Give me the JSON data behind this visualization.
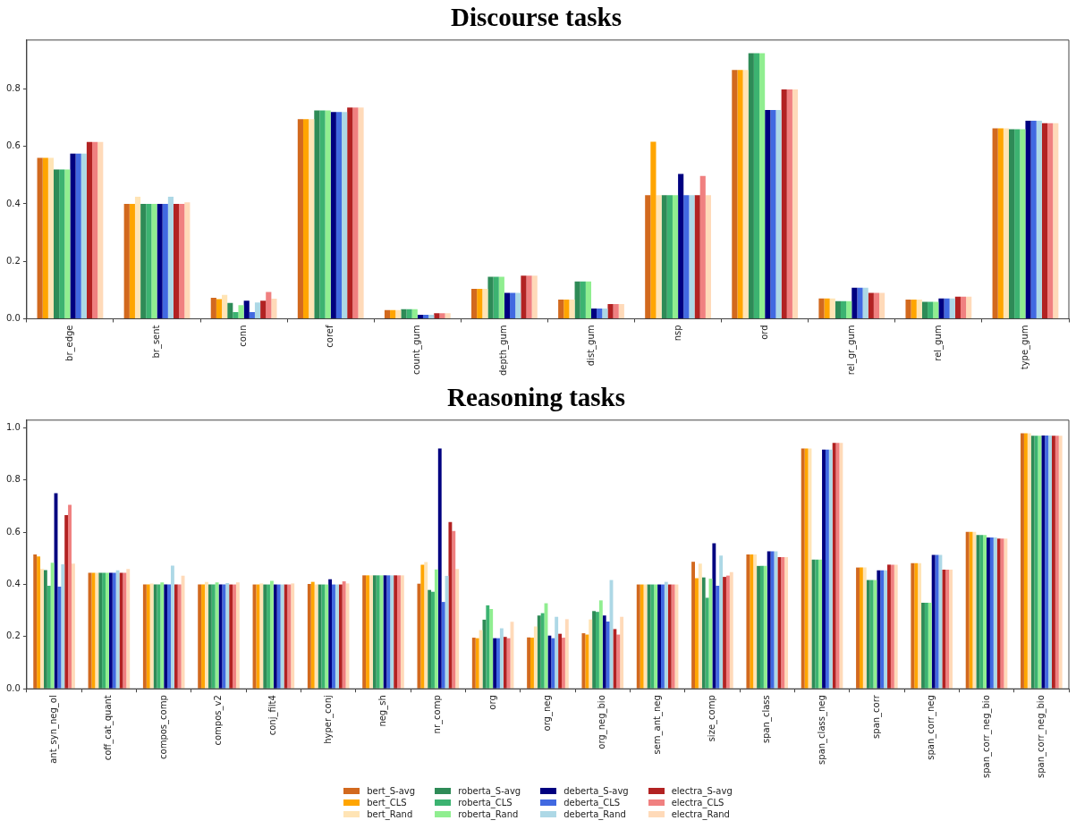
{
  "chart_data": [
    {
      "type": "bar",
      "title": "Discourse tasks",
      "categories": [
        "br_edge",
        "br_sent",
        "conn",
        "coref",
        "count_gum",
        "depth_gum",
        "dist_gum",
        "nsp",
        "ord",
        "rel_gr_gum",
        "rel_gum",
        "type_gum"
      ],
      "series": [
        {
          "color": "#d2691e",
          "values": [
            0.56,
            0.4,
            0.073,
            0.695,
            0.03,
            0.104,
            0.067,
            0.43,
            0.866,
            0.071,
            0.067,
            0.663
          ]
        },
        {
          "color": "#ffa500",
          "values": [
            0.56,
            0.4,
            0.068,
            0.695,
            0.03,
            0.104,
            0.067,
            0.616,
            0.866,
            0.071,
            0.067,
            0.663
          ]
        },
        {
          "color": "#ffe4b5",
          "values": [
            0.56,
            0.425,
            0.083,
            0.695,
            0.03,
            0.104,
            0.067,
            0.43,
            0.866,
            0.071,
            0.067,
            0.663
          ]
        },
        {
          "color": "#2e8b57",
          "values": [
            0.52,
            0.4,
            0.055,
            0.725,
            0.033,
            0.146,
            0.13,
            0.43,
            0.924,
            0.061,
            0.059,
            0.66
          ]
        },
        {
          "color": "#3cb371",
          "values": [
            0.52,
            0.4,
            0.023,
            0.725,
            0.033,
            0.146,
            0.13,
            0.43,
            0.924,
            0.061,
            0.059,
            0.66
          ]
        },
        {
          "color": "#90ee90",
          "values": [
            0.52,
            0.4,
            0.047,
            0.725,
            0.033,
            0.146,
            0.13,
            0.43,
            0.924,
            0.061,
            0.059,
            0.66
          ]
        },
        {
          "color": "#000080",
          "values": [
            0.575,
            0.4,
            0.063,
            0.72,
            0.014,
            0.09,
            0.036,
            0.504,
            0.727,
            0.108,
            0.071,
            0.689
          ]
        },
        {
          "color": "#4169e1",
          "values": [
            0.575,
            0.4,
            0.023,
            0.72,
            0.014,
            0.09,
            0.036,
            0.43,
            0.727,
            0.108,
            0.071,
            0.689
          ]
        },
        {
          "color": "#add8e6",
          "values": [
            0.575,
            0.425,
            0.057,
            0.72,
            0.014,
            0.09,
            0.036,
            0.43,
            0.727,
            0.108,
            0.071,
            0.689
          ]
        },
        {
          "color": "#b22222",
          "values": [
            0.615,
            0.4,
            0.063,
            0.735,
            0.019,
            0.15,
            0.051,
            0.43,
            0.798,
            0.09,
            0.077,
            0.681
          ]
        },
        {
          "color": "#f08080",
          "values": [
            0.615,
            0.4,
            0.093,
            0.735,
            0.019,
            0.15,
            0.051,
            0.497,
            0.798,
            0.09,
            0.077,
            0.681
          ]
        },
        {
          "color": "#ffdab9",
          "values": [
            0.615,
            0.405,
            0.07,
            0.735,
            0.019,
            0.15,
            0.051,
            0.43,
            0.798,
            0.09,
            0.077,
            0.681
          ]
        }
      ],
      "ylim": [
        0,
        0.97
      ],
      "yticks": [
        {
          "value": 0,
          "label": "0.0"
        },
        {
          "value": 0.2,
          "label": "0.2"
        },
        {
          "value": 0.4,
          "label": "0.4"
        },
        {
          "value": 0.6,
          "label": "0.6"
        },
        {
          "value": 0.8,
          "label": "0.8"
        }
      ]
    },
    {
      "type": "bar",
      "title": "Reasoning tasks",
      "categories": [
        "ant_syn_neg_ol",
        "coff_cat_quant",
        "compos_comp",
        "compos_v2",
        "conj_filt4",
        "hyper_conj",
        "neg_sh",
        "nr_comp",
        "org",
        "org_neg",
        "org_neg_bio",
        "sem_ant_neg",
        "size_comp",
        "span_class",
        "span_class_neg",
        "span_corr",
        "span_corr_neg",
        "span_corr_neg_bio",
        "span_corr_neg_bio"
      ],
      "series": [
        {
          "name": "bert_S-avg",
          "color": "#d2691e",
          "values": [
            0.515,
            0.445,
            0.4,
            0.4,
            0.4,
            0.402,
            0.435,
            0.403,
            0.196,
            0.197,
            0.213,
            0.4,
            0.487,
            0.515,
            0.921,
            0.465,
            0.482,
            0.602,
            0.98
          ]
        },
        {
          "name": "bert_CLS",
          "color": "#ffa500",
          "values": [
            0.507,
            0.445,
            0.4,
            0.4,
            0.4,
            0.41,
            0.435,
            0.476,
            0.194,
            0.196,
            0.208,
            0.4,
            0.424,
            0.515,
            0.921,
            0.465,
            0.482,
            0.602,
            0.98
          ]
        },
        {
          "name": "bert_Rand",
          "color": "#ffe4b5",
          "values": [
            0.459,
            0.445,
            0.404,
            0.41,
            0.404,
            0.4,
            0.435,
            0.486,
            0.225,
            0.239,
            0.266,
            0.4,
            0.48,
            0.515,
            0.921,
            0.465,
            0.482,
            0.602,
            0.98
          ]
        },
        {
          "name": "roberta_S-avg",
          "color": "#2e8b57",
          "values": [
            0.455,
            0.445,
            0.4,
            0.4,
            0.4,
            0.4,
            0.435,
            0.379,
            0.265,
            0.281,
            0.298,
            0.4,
            0.427,
            0.471,
            0.495,
            0.417,
            0.33,
            0.59,
            0.97
          ]
        },
        {
          "name": "roberta_CLS",
          "color": "#3cb371",
          "values": [
            0.395,
            0.445,
            0.4,
            0.4,
            0.4,
            0.4,
            0.435,
            0.372,
            0.32,
            0.29,
            0.295,
            0.4,
            0.349,
            0.471,
            0.495,
            0.417,
            0.33,
            0.59,
            0.97
          ]
        },
        {
          "name": "roberta_Rand",
          "color": "#90ee90",
          "values": [
            0.483,
            0.445,
            0.408,
            0.408,
            0.414,
            0.4,
            0.435,
            0.458,
            0.306,
            0.328,
            0.339,
            0.4,
            0.422,
            0.471,
            0.495,
            0.417,
            0.33,
            0.59,
            0.97
          ]
        },
        {
          "name": "deberta_S-avg",
          "color": "#000080",
          "values": [
            0.75,
            0.445,
            0.4,
            0.4,
            0.4,
            0.42,
            0.435,
            0.921,
            0.194,
            0.204,
            0.281,
            0.4,
            0.558,
            0.527,
            0.917,
            0.454,
            0.513,
            0.58,
            0.971
          ]
        },
        {
          "name": "deberta_CLS",
          "color": "#4169e1",
          "values": [
            0.392,
            0.445,
            0.4,
            0.4,
            0.4,
            0.4,
            0.435,
            0.333,
            0.194,
            0.194,
            0.258,
            0.4,
            0.395,
            0.527,
            0.917,
            0.454,
            0.513,
            0.58,
            0.971
          ]
        },
        {
          "name": "deberta_Rand",
          "color": "#add8e6",
          "values": [
            0.477,
            0.454,
            0.472,
            0.405,
            0.4,
            0.4,
            0.435,
            0.433,
            0.232,
            0.276,
            0.417,
            0.41,
            0.511,
            0.527,
            0.917,
            0.454,
            0.513,
            0.58,
            0.971
          ]
        },
        {
          "name": "electra_S-avg",
          "color": "#b22222",
          "values": [
            0.666,
            0.445,
            0.4,
            0.4,
            0.4,
            0.4,
            0.435,
            0.639,
            0.199,
            0.211,
            0.229,
            0.4,
            0.429,
            0.505,
            0.943,
            0.476,
            0.457,
            0.576,
            0.97
          ]
        },
        {
          "name": "electra_CLS",
          "color": "#f08080",
          "values": [
            0.705,
            0.445,
            0.4,
            0.4,
            0.4,
            0.412,
            0.435,
            0.605,
            0.194,
            0.196,
            0.208,
            0.4,
            0.434,
            0.505,
            0.943,
            0.476,
            0.457,
            0.576,
            0.97
          ]
        },
        {
          "name": "electra_Rand",
          "color": "#ffdab9",
          "values": [
            0.48,
            0.459,
            0.434,
            0.408,
            0.404,
            0.404,
            0.435,
            0.459,
            0.257,
            0.267,
            0.276,
            0.4,
            0.447,
            0.505,
            0.943,
            0.476,
            0.457,
            0.576,
            0.97
          ]
        }
      ],
      "ylim": [
        0,
        1.03
      ],
      "yticks": [
        {
          "value": 0,
          "label": "0.0"
        },
        {
          "value": 0.2,
          "label": "0.2"
        },
        {
          "value": 0.4,
          "label": "0.4"
        },
        {
          "value": 0.6,
          "label": "0.6"
        },
        {
          "value": 0.8,
          "label": "0.8"
        },
        {
          "value": 1,
          "label": "1.0"
        }
      ],
      "legend": "bottom"
    }
  ]
}
